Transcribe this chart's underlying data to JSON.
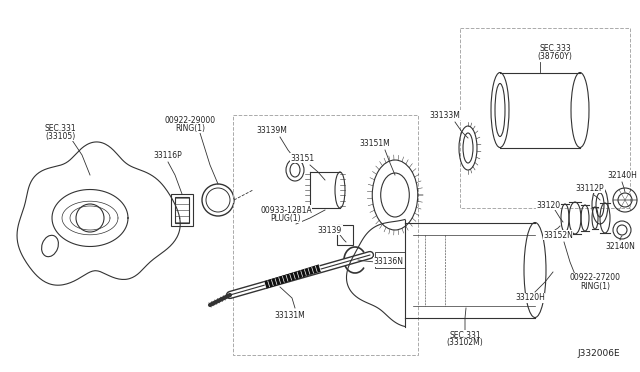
{
  "background_color": "#ffffff",
  "diagram_code": "J332006E",
  "line_color": "#333333",
  "text_color": "#222222",
  "font_size": 5.8,
  "dashed_box_color": "#aaaaaa",
  "labels": {
    "sec331_left": "SEC.331\n〳33105〱",
    "ring29000": "00922-29000\nRING〱1〱",
    "part_33116P": "33116P",
    "part_33151": "33151",
    "part_33139M": "33139M",
    "part_33151M": "33151M",
    "part_33133M": "33133M",
    "sec333": "SEC.333\n〳38760Y〱",
    "plug": "00933-12B1A\nPLUG〱1〱",
    "part_33139": "33139",
    "part_33136N": "33136N",
    "part_33131M": "33131M",
    "sec331_right": "SEC.331\n〳33102M〱",
    "part_33120H": "33120H",
    "ring27200": "00922-27200\nRING〱1〱",
    "part_33152N": "33152N",
    "part_33120": "33120",
    "part_33112P": "33112P",
    "part_32140H": "32140H",
    "part_32140N": "32140N"
  }
}
